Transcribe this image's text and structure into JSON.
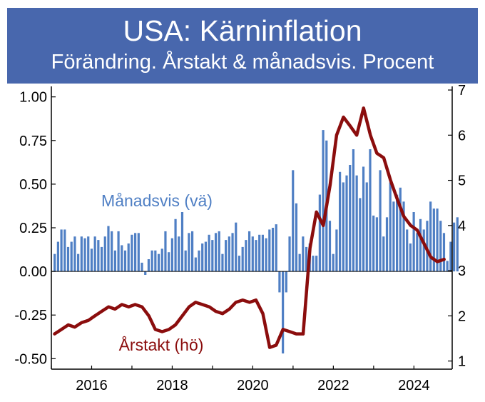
{
  "chart_data": {
    "type": "bar+line",
    "title": "USA: Kärninflation",
    "subtitle": "Förändring. Årstakt & månadsvis. Procent",
    "left_axis": {
      "range": [
        -0.56,
        1.06
      ],
      "ticks": [
        "1.00",
        "0.75",
        "0.50",
        "0.25",
        "0.00",
        "-0.25",
        "-0.50"
      ],
      "tick_values": [
        1.0,
        0.75,
        0.5,
        0.25,
        0.0,
        -0.25,
        -0.5
      ]
    },
    "right_axis": {
      "range": [
        0.82,
        7.08
      ],
      "ticks": [
        "7",
        "6",
        "5",
        "4",
        "3",
        "2",
        "1"
      ],
      "tick_values": [
        7,
        6,
        5,
        4,
        3,
        2,
        1
      ]
    },
    "x_axis": {
      "range": [
        2015.0,
        2024.95
      ],
      "ticks": [
        "2016",
        "2018",
        "2020",
        "2022",
        "2024"
      ],
      "tick_values": [
        2016,
        2018,
        2020,
        2022,
        2024
      ]
    },
    "series": [
      {
        "name": "Månadsvis (vä)",
        "kind": "bar",
        "axis": "left",
        "color": "#4f7fc4",
        "start": 2015.083,
        "step": 0.0833,
        "values": [
          0.1,
          0.17,
          0.24,
          0.24,
          0.14,
          0.17,
          0.2,
          0.1,
          0.2,
          0.19,
          0.2,
          0.13,
          0.2,
          0.18,
          0.14,
          0.2,
          0.26,
          0.23,
          0.12,
          0.23,
          0.15,
          0.12,
          0.16,
          0.21,
          0.22,
          0.22,
          0.05,
          -0.02,
          0.07,
          0.12,
          0.12,
          0.1,
          0.13,
          0.23,
          0.11,
          0.19,
          0.3,
          0.2,
          0.34,
          0.12,
          0.22,
          0.23,
          0.08,
          0.12,
          0.16,
          0.17,
          0.21,
          0.18,
          0.22,
          0.23,
          0.1,
          0.18,
          0.2,
          0.22,
          0.28,
          0.09,
          0.14,
          0.18,
          0.23,
          0.2,
          0.18,
          0.21,
          0.21,
          0.19,
          0.24,
          0.25,
          0.27,
          -0.12,
          -0.47,
          -0.12,
          0.2,
          0.58,
          0.39,
          0.1,
          0.2,
          0.14,
          0.16,
          0.09,
          0.09,
          0.44,
          0.81,
          0.75,
          0.29,
          0.1,
          0.24,
          0.57,
          0.51,
          0.55,
          0.61,
          0.7,
          0.55,
          0.42,
          0.6,
          0.51,
          0.7,
          0.32,
          0.31,
          0.58,
          0.2,
          0.31,
          0.51,
          0.4,
          0.44,
          0.48,
          0.4,
          0.24,
          0.16,
          0.34,
          0.22,
          0.3,
          0.24,
          0.29,
          0.4,
          0.36,
          0.36,
          0.29,
          0.22,
          0.06,
          0.17,
          0.28,
          0.31
        ]
      },
      {
        "name": "Årstakt (hö)",
        "kind": "line",
        "axis": "right",
        "color": "#8b0d0d",
        "points": [
          [
            2015.08,
            1.6
          ],
          [
            2015.25,
            1.7
          ],
          [
            2015.42,
            1.8
          ],
          [
            2015.58,
            1.75
          ],
          [
            2015.75,
            1.85
          ],
          [
            2015.92,
            1.9
          ],
          [
            2016.08,
            2.0
          ],
          [
            2016.25,
            2.1
          ],
          [
            2016.42,
            2.2
          ],
          [
            2016.58,
            2.15
          ],
          [
            2016.75,
            2.25
          ],
          [
            2016.92,
            2.2
          ],
          [
            2017.08,
            2.25
          ],
          [
            2017.25,
            2.2
          ],
          [
            2017.42,
            2.0
          ],
          [
            2017.58,
            1.7
          ],
          [
            2017.75,
            1.65
          ],
          [
            2017.92,
            1.7
          ],
          [
            2018.08,
            1.8
          ],
          [
            2018.25,
            2.0
          ],
          [
            2018.42,
            2.2
          ],
          [
            2018.58,
            2.3
          ],
          [
            2018.75,
            2.25
          ],
          [
            2018.92,
            2.2
          ],
          [
            2019.08,
            2.1
          ],
          [
            2019.25,
            2.05
          ],
          [
            2019.42,
            2.15
          ],
          [
            2019.58,
            2.3
          ],
          [
            2019.75,
            2.35
          ],
          [
            2019.92,
            2.3
          ],
          [
            2020.08,
            2.35
          ],
          [
            2020.25,
            2.05
          ],
          [
            2020.42,
            1.3
          ],
          [
            2020.58,
            1.35
          ],
          [
            2020.75,
            1.7
          ],
          [
            2020.92,
            1.65
          ],
          [
            2021.08,
            1.6
          ],
          [
            2021.25,
            1.6
          ],
          [
            2021.42,
            3.5
          ],
          [
            2021.58,
            4.3
          ],
          [
            2021.75,
            4.0
          ],
          [
            2021.92,
            4.9
          ],
          [
            2022.08,
            6.0
          ],
          [
            2022.25,
            6.4
          ],
          [
            2022.42,
            6.2
          ],
          [
            2022.58,
            6.0
          ],
          [
            2022.75,
            6.6
          ],
          [
            2022.92,
            6.0
          ],
          [
            2023.08,
            5.6
          ],
          [
            2023.25,
            5.5
          ],
          [
            2023.42,
            5.0
          ],
          [
            2023.58,
            4.6
          ],
          [
            2023.75,
            4.2
          ],
          [
            2023.92,
            4.0
          ],
          [
            2024.08,
            3.9
          ],
          [
            2024.25,
            3.6
          ],
          [
            2024.42,
            3.3
          ],
          [
            2024.58,
            3.2
          ],
          [
            2024.75,
            3.25
          ]
        ]
      }
    ],
    "annotations": [
      {
        "text": "Månadsvis (vä)",
        "series": "Månadsvis (vä)"
      },
      {
        "text": "Årstakt (hö)",
        "series": "Årstakt (hö)"
      }
    ]
  }
}
